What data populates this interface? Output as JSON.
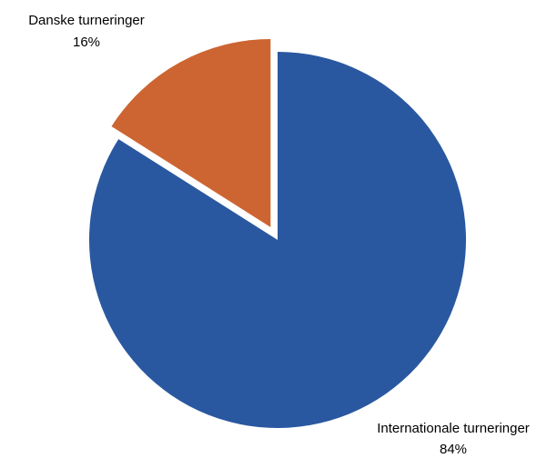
{
  "chart_data": {
    "type": "pie",
    "slices": [
      {
        "label": "Internationale turneringer",
        "value": 84,
        "value_label": "84%",
        "color": "#2a58a0"
      },
      {
        "label": "Danske turneringer",
        "value": 16,
        "value_label": "16%",
        "color": "#cd6532",
        "exploded": true
      }
    ],
    "start_angle": "12 o'clock",
    "direction": "clockwise",
    "legend": "none"
  }
}
